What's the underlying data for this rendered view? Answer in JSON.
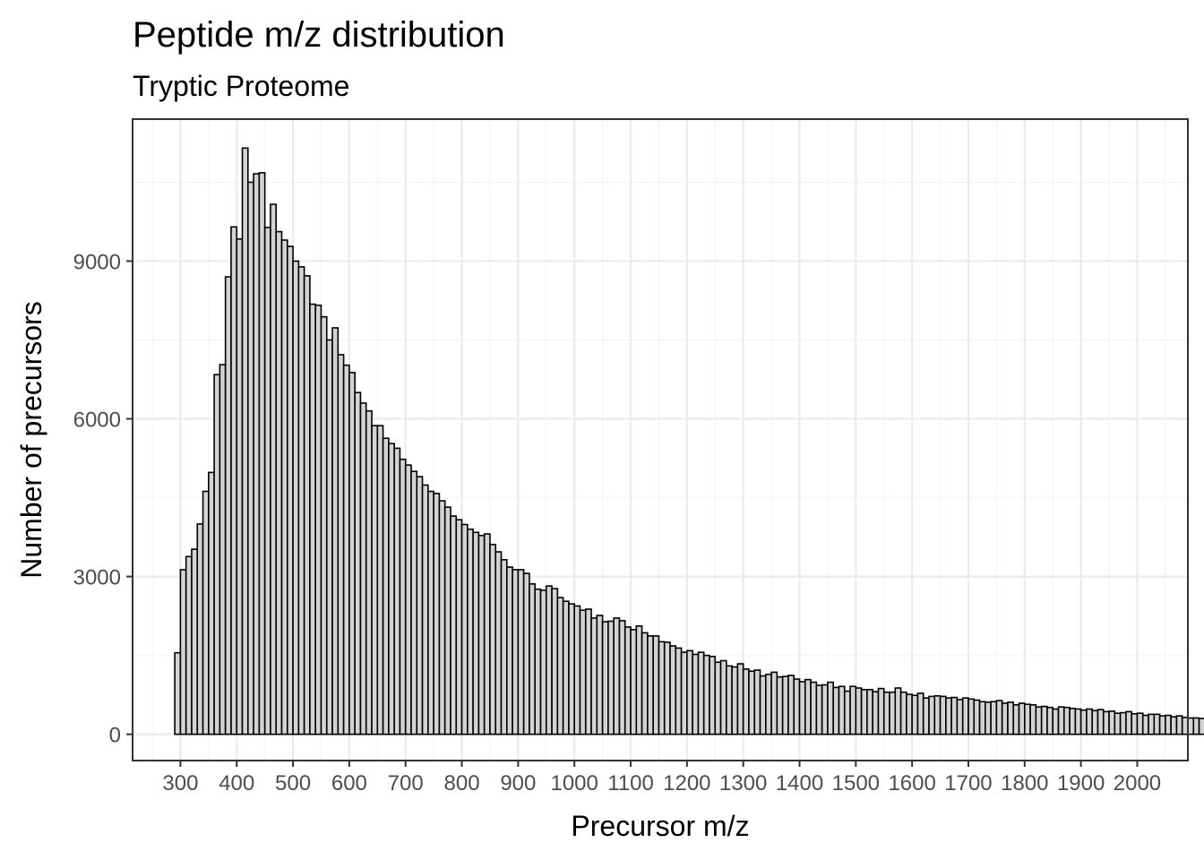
{
  "chart_data": {
    "type": "bar",
    "title": "Peptide m/z distribution",
    "subtitle": "Tryptic Proteome",
    "xlabel": "Precursor m/z",
    "ylabel": "Number of precursors",
    "xlim": [
      215,
      2090
    ],
    "ylim": [
      -500,
      11700
    ],
    "x_ticks": [
      "300",
      "400",
      "500",
      "600",
      "700",
      "800",
      "900",
      "1000",
      "1100",
      "1200",
      "1300",
      "1400",
      "1500",
      "1600",
      "1700",
      "1800",
      "1900",
      "2000"
    ],
    "y_ticks": [
      "0",
      "3000",
      "6000",
      "9000"
    ],
    "grid": true,
    "legend": "none",
    "bin_width": 10,
    "bin_start": 290,
    "values": [
      1550,
      3130,
      3380,
      3520,
      4000,
      4620,
      4980,
      6840,
      7030,
      8700,
      9650,
      9420,
      11150,
      10500,
      10660,
      10680,
      9640,
      10080,
      9560,
      9400,
      9280,
      9000,
      8890,
      8720,
      8180,
      8160,
      7940,
      7500,
      7730,
      7220,
      7020,
      6880,
      6500,
      6300,
      6150,
      5870,
      5870,
      5630,
      5530,
      5440,
      5230,
      5120,
      5000,
      4900,
      4740,
      4620,
      4580,
      4440,
      4320,
      4150,
      4080,
      3990,
      3900,
      3840,
      3780,
      3810,
      3610,
      3470,
      3320,
      3180,
      3130,
      3130,
      3060,
      2860,
      2760,
      2740,
      2820,
      2770,
      2600,
      2530,
      2480,
      2440,
      2360,
      2380,
      2210,
      2260,
      2140,
      2150,
      2210,
      2160,
      2040,
      1990,
      2060,
      1930,
      1870,
      1870,
      1760,
      1750,
      1680,
      1640,
      1560,
      1590,
      1520,
      1560,
      1500,
      1480,
      1370,
      1400,
      1300,
      1280,
      1340,
      1240,
      1200,
      1220,
      1110,
      1140,
      1180,
      1090,
      1100,
      1120,
      1050,
      1000,
      1040,
      990,
      930,
      940,
      990,
      890,
      910,
      820,
      910,
      880,
      850,
      850,
      810,
      870,
      800,
      800,
      880,
      800,
      760,
      740,
      780,
      690,
      720,
      730,
      720,
      690,
      700,
      660,
      690,
      670,
      650,
      620,
      610,
      620,
      640,
      590,
      610,
      560,
      590,
      570,
      560,
      520,
      530,
      510,
      480,
      520,
      510,
      490,
      480,
      460,
      480,
      450,
      470,
      430,
      440,
      400,
      410,
      430,
      390,
      400,
      360,
      380,
      380,
      350,
      360,
      330,
      350,
      320,
      310,
      310,
      300,
      320,
      280,
      290,
      260,
      270,
      240,
      250,
      260,
      240,
      230,
      220,
      200,
      180,
      160,
      140,
      120
    ]
  }
}
